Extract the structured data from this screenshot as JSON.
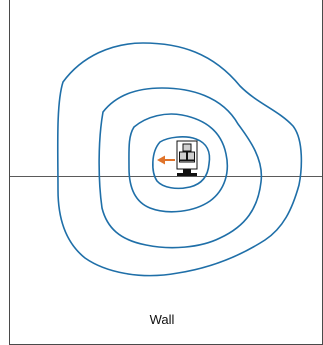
{
  "labels": {
    "wall": "Wall"
  },
  "colors": {
    "contour": "#1f6fa8",
    "arrow": "#e0732a",
    "frame": "#4a4a4a",
    "device_fill": "#cfcfcf",
    "device_stroke": "#111111"
  },
  "icons": {
    "device": "speaker-cabinet-icon",
    "direction": "left-arrow-icon"
  }
}
